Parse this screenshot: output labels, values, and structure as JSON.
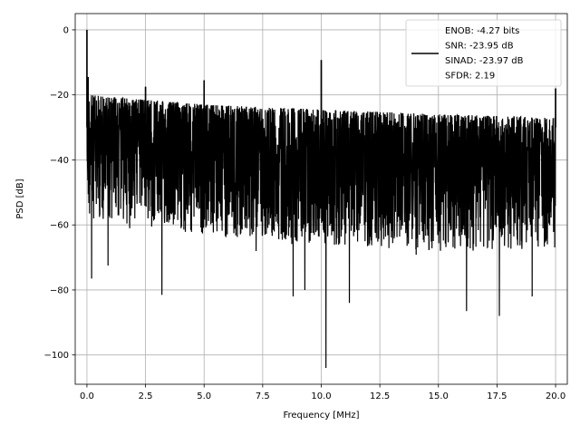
{
  "chart_data": {
    "type": "line",
    "title": "",
    "xlabel": "Frequency [MHz]",
    "ylabel": "PSD [dB]",
    "xlim": [
      -0.5,
      20.5
    ],
    "ylim": [
      -109,
      5
    ],
    "xticks": [
      0,
      2.5,
      5,
      7.5,
      10,
      12.5,
      15,
      17.5,
      20
    ],
    "xtick_labels": [
      "0.0",
      "2.5",
      "5.0",
      "7.5",
      "10.0",
      "12.5",
      "15.0",
      "17.5",
      "20.0"
    ],
    "yticks": [
      0,
      -20,
      -40,
      -60,
      -80,
      -100
    ],
    "ytick_labels": [
      "0",
      "−20",
      "−40",
      "−60",
      "−80",
      "−100"
    ],
    "grid": true,
    "legend_placement": "upper-right",
    "series": [
      {
        "name": "ENOB: -4.27 bits\nSNR: -23.95 dB\nSINAD: -23.97 dB\nSFDR: 2.19",
        "color": "#000000",
        "x_range": [
          0,
          20
        ],
        "noise_floor_top_db": [
          [
            0,
            -20
          ],
          [
            5,
            -23
          ],
          [
            10,
            -24.5
          ],
          [
            15,
            -26
          ],
          [
            20,
            -27
          ]
        ],
        "noise_floor_bottom_db": [
          [
            0,
            -58
          ],
          [
            5,
            -63
          ],
          [
            10,
            -66
          ],
          [
            15,
            -68
          ],
          [
            20,
            -68
          ]
        ],
        "spurs": [
          {
            "x": 0.0,
            "y": 0.0
          },
          {
            "x": 0.05,
            "y": -14.5
          },
          {
            "x": 2.5,
            "y": -17.5
          },
          {
            "x": 5.0,
            "y": -15.5
          },
          {
            "x": 10.0,
            "y": -9.3
          },
          {
            "x": 20.0,
            "y": -18.0
          }
        ],
        "dips": [
          {
            "x": 0.2,
            "y": -76.5
          },
          {
            "x": 0.9,
            "y": -72.5
          },
          {
            "x": 3.2,
            "y": -81.5
          },
          {
            "x": 8.8,
            "y": -82.0
          },
          {
            "x": 9.3,
            "y": -80.0
          },
          {
            "x": 10.2,
            "y": -104.0
          },
          {
            "x": 11.2,
            "y": -84.0
          },
          {
            "x": 16.2,
            "y": -86.5
          },
          {
            "x": 17.6,
            "y": -88.0
          },
          {
            "x": 19.0,
            "y": -82.0
          }
        ]
      }
    ],
    "legend": {
      "lines": [
        "ENOB: -4.27 bits",
        "SNR: -23.95 dB",
        "SINAD: -23.97 dB",
        "SFDR: 2.19"
      ]
    }
  }
}
